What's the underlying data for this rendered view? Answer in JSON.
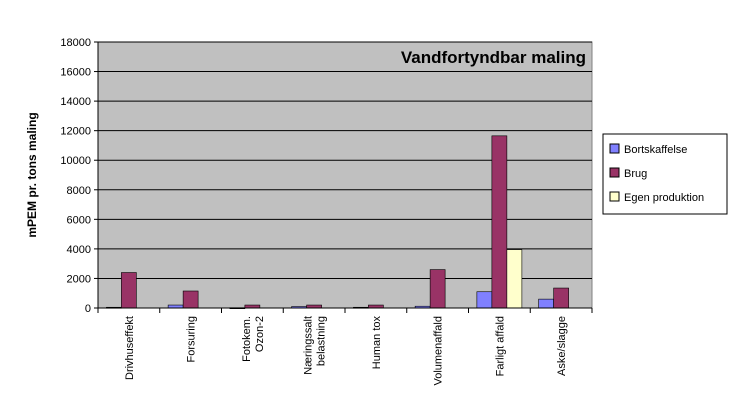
{
  "chart_data": {
    "type": "bar",
    "title": "Vandfortyndbar maling",
    "ylabel": "mPEM pr. tons maling",
    "xlabel": "",
    "ylim": [
      0,
      18000
    ],
    "yticks": [
      0,
      2000,
      4000,
      6000,
      8000,
      10000,
      12000,
      14000,
      16000,
      18000
    ],
    "grid": true,
    "legend_position": "right",
    "categories": [
      [
        "Drivhuseffekt"
      ],
      [
        "Forsuring"
      ],
      [
        "Fotokem.",
        "Ozon-2"
      ],
      [
        "Næringssalt",
        "belastning"
      ],
      [
        "Human tox"
      ],
      [
        "Volumenaffald"
      ],
      [
        "Farligt affald"
      ],
      [
        "Aske/slagge"
      ]
    ],
    "series": [
      {
        "name": "Bortskaffelse",
        "color": "#8080ff",
        "values": [
          50,
          200,
          20,
          100,
          50,
          120,
          1100,
          600
        ]
      },
      {
        "name": "Brug",
        "color": "#993366",
        "values": [
          2400,
          1150,
          200,
          200,
          200,
          2600,
          11650,
          1350
        ]
      },
      {
        "name": "Egen produktion",
        "color": "#ffffcc",
        "values": [
          0,
          0,
          0,
          0,
          0,
          0,
          3950,
          0
        ]
      }
    ],
    "plot_background": "#c0c0c0"
  }
}
